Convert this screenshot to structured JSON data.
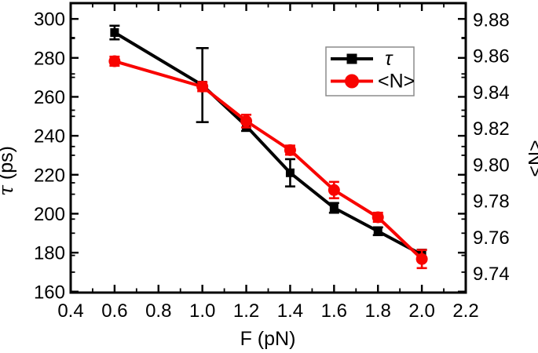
{
  "figure": {
    "background": "#ffffff",
    "frame_color": "#000000",
    "legend": {
      "border_color": "#8c8c8c",
      "items": [
        {
          "label": "τ",
          "marker": "square",
          "color": "#000000"
        },
        {
          "label": "<N>",
          "marker": "circle",
          "color": "#f80400"
        }
      ]
    }
  },
  "chart_data": {
    "type": "line",
    "title": "",
    "xlabel": "F (pN)",
    "x": [
      0.6,
      1.0,
      1.2,
      1.4,
      1.6,
      1.8,
      2.0
    ],
    "x_axis": {
      "min": 0.4,
      "max": 2.2,
      "majors": [
        0.4,
        0.6,
        0.8,
        1.0,
        1.2,
        1.4,
        1.6,
        1.8,
        2.0,
        2.2
      ],
      "major_labels": [
        "0.4",
        "0.6",
        "0.8",
        "1.0",
        "1.2",
        "1.4",
        "1.6",
        "1.8",
        "2.0",
        "2.2"
      ],
      "minors": [
        0.5,
        0.7,
        0.9,
        1.1,
        1.3,
        1.5,
        1.7,
        1.9,
        2.1
      ]
    },
    "left_axis": {
      "label": "τ (ps)",
      "min": 159.5,
      "max": 308.1,
      "majors": [
        160,
        180,
        200,
        220,
        240,
        260,
        280,
        300
      ],
      "major_labels": [
        "160",
        "180",
        "200",
        "220",
        "240",
        "260",
        "280",
        "300"
      ],
      "minors": [
        170,
        190,
        210,
        230,
        250,
        270,
        290
      ]
    },
    "right_axis": {
      "label": "<N>",
      "min": 9.7295,
      "max": 9.889,
      "majors": [
        9.74,
        9.76,
        9.78,
        9.8,
        9.82,
        9.84,
        9.86,
        9.88
      ],
      "major_labels": [
        "9.74",
        "9.76",
        "9.78",
        "9.80",
        "9.82",
        "9.84",
        "9.86",
        "9.88"
      ],
      "minors": [
        9.73,
        9.75,
        9.77,
        9.79,
        9.81,
        9.83,
        9.85,
        9.87
      ]
    },
    "grid": false,
    "legend_position": "upper-right",
    "series": [
      {
        "name": "τ",
        "axis": "left",
        "marker": "square",
        "color": "#000000",
        "values": [
          293,
          266,
          245,
          221,
          203,
          191,
          179
        ],
        "errors": [
          3.5,
          19,
          2.5,
          7,
          2.5,
          2,
          2.5
        ]
      },
      {
        "name": "<N>",
        "axis": "right",
        "marker": "circle",
        "color": "#f80400",
        "values": [
          9.857,
          9.843,
          9.824,
          9.808,
          9.786,
          9.771,
          9.748
        ],
        "errors": [
          0.0025,
          0.0025,
          0.0035,
          0.0025,
          0.0045,
          0.0025,
          0.005
        ]
      }
    ]
  }
}
